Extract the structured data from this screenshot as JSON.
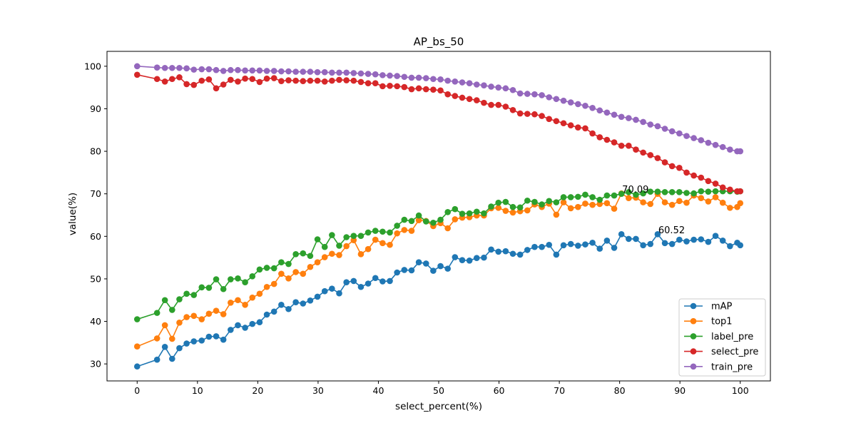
{
  "chart_data": {
    "type": "line",
    "title": "AP_bs_50",
    "xlabel": "select_percent(%)",
    "ylabel": "value(%)",
    "xlim": [
      -5,
      105
    ],
    "ylim": [
      26,
      103.5
    ],
    "xticks": [
      0,
      10,
      20,
      30,
      40,
      50,
      60,
      70,
      80,
      90,
      100
    ],
    "yticks": [
      30,
      40,
      50,
      60,
      70,
      80,
      90,
      100
    ],
    "grid": false,
    "legend": "lower-right",
    "x": [
      0,
      3.3,
      4.6,
      5.8,
      7.0,
      8.2,
      9.4,
      10.7,
      11.9,
      13.1,
      14.3,
      15.5,
      16.7,
      17.9,
      19.1,
      20.3,
      21.5,
      22.7,
      23.9,
      25.1,
      26.3,
      27.5,
      28.7,
      29.9,
      31.1,
      32.3,
      33.5,
      34.7,
      35.9,
      37.1,
      38.3,
      39.5,
      40.7,
      41.9,
      43.1,
      44.3,
      45.5,
      46.7,
      47.9,
      49.1,
      50.3,
      51.5,
      52.7,
      53.9,
      55.1,
      56.3,
      57.5,
      58.7,
      59.9,
      61.1,
      62.3,
      63.5,
      64.7,
      65.9,
      67.1,
      68.3,
      69.5,
      70.7,
      71.9,
      73.1,
      74.3,
      75.5,
      76.7,
      77.9,
      79.1,
      80.3,
      81.5,
      82.7,
      83.9,
      85.1,
      86.3,
      87.5,
      88.7,
      89.9,
      91.1,
      92.3,
      93.5,
      94.7,
      95.9,
      97.1,
      98.3,
      99.5,
      100
    ],
    "series": [
      {
        "name": "mAP",
        "color": "#1f77b4",
        "values": [
          29.4,
          31.0,
          34.0,
          31.2,
          33.7,
          34.8,
          35.3,
          35.5,
          36.4,
          36.5,
          35.7,
          38.0,
          39.1,
          38.5,
          39.4,
          39.8,
          41.6,
          42.3,
          43.9,
          42.9,
          44.5,
          44.2,
          44.9,
          45.8,
          47.1,
          47.7,
          46.6,
          49.2,
          49.5,
          48.1,
          48.9,
          50.2,
          49.4,
          49.5,
          51.5,
          52.1,
          52.0,
          53.9,
          53.6,
          51.9,
          53.0,
          52.4,
          55.1,
          54.4,
          54.3,
          54.9,
          55.0,
          56.9,
          56.4,
          56.5,
          55.9,
          55.7,
          56.8,
          57.5,
          57.5,
          58.0,
          55.7,
          57.9,
          58.2,
          57.8,
          58.1,
          58.5,
          57.1,
          59.0,
          57.3,
          60.5,
          59.4,
          59.4,
          57.9,
          58.2,
          60.5,
          58.4,
          58.2,
          59.2,
          58.8,
          59.2,
          59.3,
          58.7,
          60.1,
          59.0,
          57.7,
          58.5,
          57.9
        ]
      },
      {
        "name": "top1",
        "color": "#ff7f0e",
        "values": [
          34.1,
          36.0,
          39.1,
          35.9,
          39.7,
          41.0,
          41.3,
          40.5,
          41.8,
          42.5,
          41.7,
          44.4,
          45.0,
          43.9,
          45.6,
          46.5,
          48.1,
          48.8,
          51.2,
          50.1,
          51.6,
          51.2,
          52.8,
          53.9,
          55.1,
          55.9,
          55.6,
          57.7,
          59.1,
          55.8,
          57.0,
          59.2,
          58.4,
          58.0,
          60.7,
          61.5,
          61.3,
          63.8,
          63.6,
          62.4,
          63.1,
          61.9,
          64.0,
          64.4,
          64.5,
          64.9,
          64.9,
          66.6,
          66.7,
          66.0,
          65.6,
          65.9,
          66.1,
          67.5,
          66.9,
          67.7,
          65.1,
          68.0,
          66.6,
          66.9,
          67.7,
          67.4,
          67.6,
          67.8,
          66.5,
          70.09,
          69.0,
          69.1,
          68.0,
          67.6,
          70.0,
          68.0,
          67.4,
          68.3,
          67.9,
          69.6,
          69.0,
          68.2,
          69.2,
          67.9,
          66.7,
          66.9,
          67.8
        ]
      },
      {
        "name": "label_pre",
        "color": "#2ca02c",
        "values": [
          40.5,
          42.0,
          45.0,
          42.7,
          45.2,
          46.5,
          46.2,
          48.0,
          47.9,
          49.9,
          47.6,
          49.9,
          50.1,
          49.2,
          50.6,
          52.2,
          52.6,
          52.5,
          53.9,
          53.5,
          55.8,
          56.0,
          55.4,
          59.3,
          57.5,
          60.3,
          57.8,
          59.8,
          60.1,
          60.1,
          60.9,
          61.3,
          61.1,
          60.9,
          62.5,
          63.9,
          63.6,
          64.9,
          63.5,
          63.2,
          63.9,
          65.7,
          66.4,
          65.3,
          65.4,
          65.8,
          65.4,
          67.0,
          67.9,
          68.1,
          66.9,
          66.8,
          68.4,
          68.1,
          67.5,
          68.3,
          68.0,
          69.2,
          69.2,
          69.3,
          69.8,
          69.2,
          68.6,
          69.6,
          69.6,
          70.0,
          70.4,
          69.8,
          70.1,
          70.5,
          70.5,
          70.4,
          70.4,
          70.4,
          70.2,
          70.1,
          70.6,
          70.5,
          70.6,
          70.6,
          70.6,
          70.5,
          70.6
        ]
      },
      {
        "name": "select_pre",
        "color": "#d62728",
        "values": [
          98.0,
          97.0,
          96.4,
          97.0,
          97.4,
          95.8,
          95.6,
          96.6,
          96.9,
          94.8,
          95.7,
          96.8,
          96.4,
          97.1,
          97.0,
          96.3,
          97.1,
          97.2,
          96.5,
          96.7,
          96.6,
          96.5,
          96.6,
          96.6,
          96.4,
          96.6,
          96.8,
          96.7,
          96.6,
          96.3,
          96.0,
          96.0,
          95.3,
          95.4,
          95.3,
          95.1,
          94.6,
          94.8,
          94.6,
          94.5,
          94.3,
          93.4,
          93.0,
          92.6,
          92.3,
          92.0,
          91.4,
          90.9,
          90.9,
          90.5,
          89.7,
          88.9,
          88.8,
          88.7,
          88.3,
          87.6,
          87.1,
          86.6,
          86.1,
          85.6,
          85.4,
          84.2,
          83.3,
          82.7,
          82.1,
          81.3,
          81.3,
          80.4,
          79.7,
          79.1,
          78.4,
          77.4,
          76.5,
          76.1,
          75.0,
          74.3,
          73.8,
          73.0,
          72.4,
          71.5,
          71.0,
          70.6,
          70.6
        ]
      },
      {
        "name": "train_pre",
        "color": "#9467bd",
        "values": [
          100.0,
          99.7,
          99.6,
          99.6,
          99.6,
          99.5,
          99.2,
          99.3,
          99.3,
          99.1,
          98.9,
          99.1,
          99.1,
          99.0,
          99.0,
          99.0,
          98.9,
          98.9,
          98.8,
          98.8,
          98.7,
          98.7,
          98.7,
          98.6,
          98.6,
          98.5,
          98.5,
          98.5,
          98.4,
          98.3,
          98.2,
          98.1,
          97.9,
          97.8,
          97.7,
          97.5,
          97.3,
          97.3,
          97.2,
          97.0,
          96.9,
          96.6,
          96.4,
          96.2,
          96.0,
          95.7,
          95.5,
          95.2,
          95.0,
          94.8,
          94.4,
          93.6,
          93.5,
          93.4,
          93.2,
          92.7,
          92.3,
          91.9,
          91.5,
          91.1,
          90.7,
          90.2,
          89.6,
          89.1,
          88.6,
          88.1,
          87.8,
          87.4,
          86.9,
          86.3,
          85.9,
          85.3,
          84.7,
          84.2,
          83.6,
          83.1,
          82.6,
          82.0,
          81.5,
          81.0,
          80.4,
          80.0,
          80.0
        ]
      }
    ],
    "annotations": [
      {
        "text": "70.09",
        "x": 80.3,
        "y": 70.09
      },
      {
        "text": "60.52",
        "x": 86.3,
        "y": 60.52
      }
    ]
  }
}
